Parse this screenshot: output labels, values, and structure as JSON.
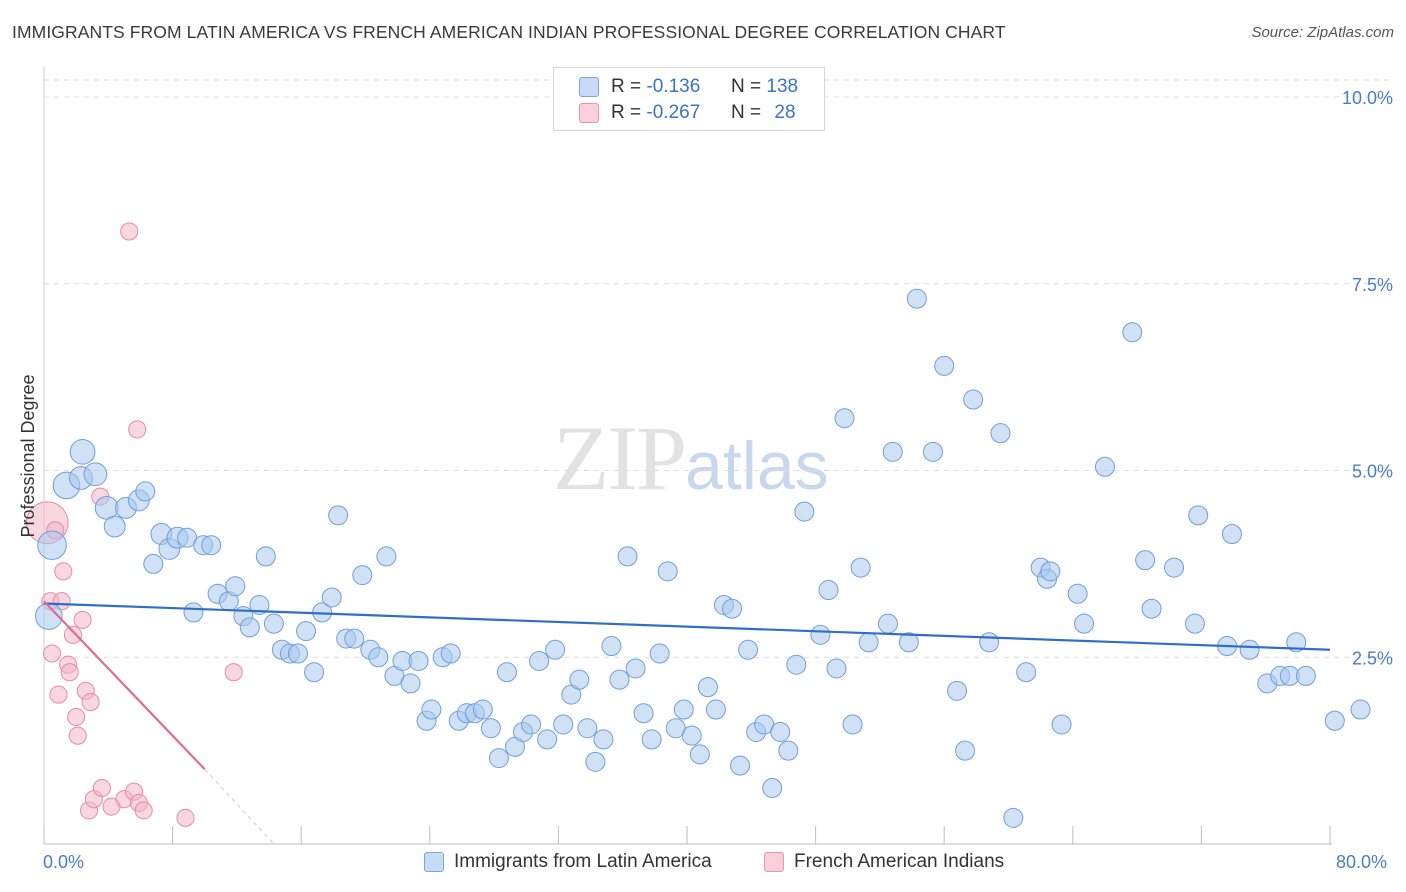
{
  "title": "IMMIGRANTS FROM LATIN AMERICA VS FRENCH AMERICAN INDIAN PROFESSIONAL DEGREE CORRELATION CHART",
  "source": "Source: ZipAtlas.com",
  "watermark": {
    "zip": "ZIP",
    "atlas": "atlas"
  },
  "legend": {
    "rows": [
      {
        "r_label": "R =",
        "r_value": "-0.136",
        "n_label": "N =",
        "n_value": "138",
        "color": "#a9c8ef"
      },
      {
        "r_label": "R =",
        "r_value": "-0.267",
        "n_label": "N =",
        "n_value": "28",
        "color": "#f4b6c8"
      }
    ]
  },
  "bottom_legend": {
    "blue_label": "Immigrants from Latin America",
    "pink_label": "French American Indians"
  },
  "x_axis": {
    "min_label": "0.0%",
    "max_label": "80.0%"
  },
  "colors": {
    "blue_fill": "#a9c8ef",
    "blue_stroke": "#6f9fd8",
    "blue_line": "#2f6fc9",
    "pink_fill": "#f4b6c8",
    "pink_stroke": "#e88aa6",
    "pink_line": "#e06a92",
    "grid": "#dcdcdc"
  },
  "chart_data": {
    "type": "scatter",
    "title": "IMMIGRANTS FROM LATIN AMERICA VS FRENCH AMERICAN INDIAN PROFESSIONAL DEGREE CORRELATION CHART",
    "xlabel": "",
    "ylabel": "Professional Degree",
    "xlim": [
      0,
      80
    ],
    "ylim": [
      0,
      10.2
    ],
    "y_ticks": [
      {
        "value": 2.5,
        "label": "2.5%"
      },
      {
        "value": 5.0,
        "label": "5.0%"
      },
      {
        "value": 7.5,
        "label": "7.5%"
      },
      {
        "value": 10.0,
        "label": "10.0%"
      }
    ],
    "x_tick_values": [
      0,
      8,
      16,
      24,
      32,
      40,
      48,
      56,
      64,
      72,
      80
    ],
    "series": [
      {
        "name": "Immigrants from Latin America",
        "color": "#a9c8ef",
        "trend": {
          "x0": 0,
          "y0": 3.22,
          "x1": 80,
          "y1": 2.6
        },
        "points": [
          [
            0.3,
            3.05,
            14
          ],
          [
            0.5,
            4.0,
            15
          ],
          [
            1.4,
            4.8,
            14
          ],
          [
            2.3,
            4.9,
            12
          ],
          [
            2.4,
            5.25,
            13
          ],
          [
            3.2,
            4.95,
            12
          ],
          [
            3.9,
            4.5,
            12
          ],
          [
            4.4,
            4.25,
            11
          ],
          [
            5.1,
            4.5,
            11
          ],
          [
            5.9,
            4.6,
            11
          ],
          [
            6.3,
            4.72,
            10
          ],
          [
            6.8,
            3.75,
            10
          ],
          [
            7.3,
            4.15,
            11
          ],
          [
            7.8,
            3.95,
            11
          ],
          [
            8.3,
            4.1,
            11
          ],
          [
            8.9,
            4.1,
            10
          ],
          [
            9.3,
            3.1,
            10
          ],
          [
            9.9,
            4.0,
            10
          ],
          [
            10.4,
            4.0,
            10
          ],
          [
            10.8,
            3.35,
            10
          ],
          [
            11.5,
            3.25,
            10
          ],
          [
            11.9,
            3.45,
            10
          ],
          [
            12.4,
            3.05,
            10
          ],
          [
            12.8,
            2.9,
            10
          ],
          [
            13.4,
            3.2,
            10
          ],
          [
            13.8,
            3.85,
            10
          ],
          [
            14.3,
            2.95,
            10
          ],
          [
            14.8,
            2.6,
            10
          ],
          [
            15.3,
            2.55,
            10
          ],
          [
            15.8,
            2.55,
            10
          ],
          [
            16.3,
            2.85,
            10
          ],
          [
            16.8,
            2.3,
            10
          ],
          [
            17.3,
            3.1,
            10
          ],
          [
            17.9,
            3.3,
            10
          ],
          [
            18.3,
            4.4,
            10
          ],
          [
            18.8,
            2.75,
            10
          ],
          [
            19.3,
            2.75,
            10
          ],
          [
            19.8,
            3.6,
            10
          ],
          [
            20.3,
            2.6,
            10
          ],
          [
            20.8,
            2.5,
            10
          ],
          [
            21.3,
            3.85,
            10
          ],
          [
            21.8,
            2.25,
            10
          ],
          [
            22.3,
            2.45,
            10
          ],
          [
            22.8,
            2.15,
            10
          ],
          [
            23.3,
            2.45,
            10
          ],
          [
            23.8,
            1.65,
            10
          ],
          [
            24.1,
            1.8,
            10
          ],
          [
            24.8,
            2.5,
            10
          ],
          [
            25.3,
            2.55,
            10
          ],
          [
            25.8,
            1.65,
            10
          ],
          [
            26.3,
            1.75,
            10
          ],
          [
            26.8,
            1.75,
            10
          ],
          [
            27.3,
            1.8,
            10
          ],
          [
            27.8,
            1.55,
            10
          ],
          [
            28.3,
            1.15,
            10
          ],
          [
            28.8,
            2.3,
            10
          ],
          [
            29.3,
            1.3,
            10
          ],
          [
            29.8,
            1.5,
            10
          ],
          [
            30.3,
            1.6,
            10
          ],
          [
            30.8,
            2.45,
            10
          ],
          [
            31.3,
            1.4,
            10
          ],
          [
            31.8,
            2.6,
            10
          ],
          [
            32.3,
            1.6,
            10
          ],
          [
            32.8,
            2.0,
            10
          ],
          [
            33.3,
            2.2,
            10
          ],
          [
            33.8,
            1.55,
            10
          ],
          [
            34.3,
            1.1,
            10
          ],
          [
            34.8,
            1.4,
            10
          ],
          [
            35.3,
            2.65,
            10
          ],
          [
            35.8,
            2.2,
            10
          ],
          [
            36.3,
            3.85,
            10
          ],
          [
            36.8,
            2.35,
            10
          ],
          [
            37.3,
            1.75,
            10
          ],
          [
            37.8,
            1.4,
            10
          ],
          [
            38.3,
            2.55,
            10
          ],
          [
            38.8,
            3.65,
            10
          ],
          [
            39.3,
            1.55,
            10
          ],
          [
            39.8,
            1.8,
            10
          ],
          [
            40.3,
            1.45,
            10
          ],
          [
            40.8,
            1.2,
            10
          ],
          [
            41.3,
            2.1,
            10
          ],
          [
            41.8,
            1.8,
            10
          ],
          [
            42.3,
            3.2,
            10
          ],
          [
            42.8,
            3.15,
            10
          ],
          [
            43.3,
            1.05,
            10
          ],
          [
            43.8,
            2.6,
            10
          ],
          [
            44.3,
            1.5,
            10
          ],
          [
            44.8,
            1.6,
            10
          ],
          [
            45.3,
            0.75,
            10
          ],
          [
            45.8,
            1.5,
            10
          ],
          [
            46.3,
            1.25,
            10
          ],
          [
            46.8,
            2.4,
            10
          ],
          [
            47.3,
            4.45,
            10
          ],
          [
            48.3,
            2.8,
            10
          ],
          [
            48.8,
            3.4,
            10
          ],
          [
            49.3,
            2.35,
            10
          ],
          [
            49.8,
            5.7,
            10
          ],
          [
            50.3,
            1.6,
            10
          ],
          [
            50.8,
            3.7,
            10
          ],
          [
            51.3,
            2.7,
            10
          ],
          [
            52.5,
            2.95,
            10
          ],
          [
            52.8,
            5.25,
            10
          ],
          [
            53.8,
            2.7,
            10
          ],
          [
            54.3,
            7.3,
            10
          ],
          [
            55.3,
            5.25,
            10
          ],
          [
            56.0,
            6.4,
            10
          ],
          [
            56.8,
            2.05,
            10
          ],
          [
            57.3,
            1.25,
            10
          ],
          [
            57.8,
            5.95,
            10
          ],
          [
            58.8,
            2.7,
            10
          ],
          [
            59.5,
            5.5,
            10
          ],
          [
            60.3,
            0.35,
            10
          ],
          [
            61.1,
            2.3,
            10
          ],
          [
            62.0,
            3.7,
            10
          ],
          [
            62.4,
            3.55,
            10
          ],
          [
            62.6,
            3.65,
            10
          ],
          [
            63.3,
            1.6,
            10
          ],
          [
            64.3,
            3.35,
            10
          ],
          [
            64.7,
            2.95,
            10
          ],
          [
            66.0,
            5.05,
            10
          ],
          [
            67.7,
            6.85,
            10
          ],
          [
            68.5,
            3.8,
            10
          ],
          [
            68.9,
            3.15,
            10
          ],
          [
            70.3,
            3.7,
            10
          ],
          [
            71.6,
            2.95,
            10
          ],
          [
            71.8,
            4.4,
            10
          ],
          [
            73.6,
            2.65,
            10
          ],
          [
            73.9,
            4.15,
            10
          ],
          [
            75.0,
            2.6,
            10
          ],
          [
            76.1,
            2.15,
            10
          ],
          [
            76.9,
            2.25,
            10
          ],
          [
            77.5,
            2.25,
            10
          ],
          [
            77.9,
            2.7,
            10
          ],
          [
            78.5,
            2.25,
            10
          ],
          [
            80.3,
            1.65,
            10
          ],
          [
            81.9,
            1.8,
            10
          ]
        ]
      },
      {
        "name": "French American Indians",
        "color": "#f4b6c8",
        "trend": {
          "x0": 0,
          "y0": 3.25,
          "x1": 10,
          "y1": 1.0,
          "dashed_to_x": 14.3,
          "dashed_to_y": 0
        },
        "points": [
          [
            0.2,
            4.3,
            22
          ],
          [
            0.4,
            3.25,
            9
          ],
          [
            0.5,
            2.55,
            9
          ],
          [
            0.7,
            4.2,
            9
          ],
          [
            0.9,
            2.0,
            9
          ],
          [
            1.1,
            3.25,
            9
          ],
          [
            1.2,
            3.65,
            9
          ],
          [
            1.5,
            2.4,
            9
          ],
          [
            1.6,
            2.3,
            9
          ],
          [
            1.8,
            2.8,
            9
          ],
          [
            2.0,
            1.7,
            9
          ],
          [
            2.1,
            1.45,
            9
          ],
          [
            2.4,
            3.0,
            9
          ],
          [
            2.6,
            2.05,
            9
          ],
          [
            2.8,
            0.45,
            9
          ],
          [
            2.9,
            1.9,
            9
          ],
          [
            3.1,
            0.6,
            9
          ],
          [
            3.5,
            4.65,
            9
          ],
          [
            3.6,
            0.75,
            9
          ],
          [
            4.2,
            0.5,
            9
          ],
          [
            5.0,
            0.6,
            9
          ],
          [
            5.3,
            8.2,
            9
          ],
          [
            5.6,
            0.7,
            9
          ],
          [
            5.8,
            5.55,
            9
          ],
          [
            5.9,
            0.55,
            9
          ],
          [
            6.2,
            0.45,
            9
          ],
          [
            8.8,
            0.35,
            9
          ],
          [
            11.8,
            2.3,
            9
          ]
        ]
      }
    ]
  }
}
